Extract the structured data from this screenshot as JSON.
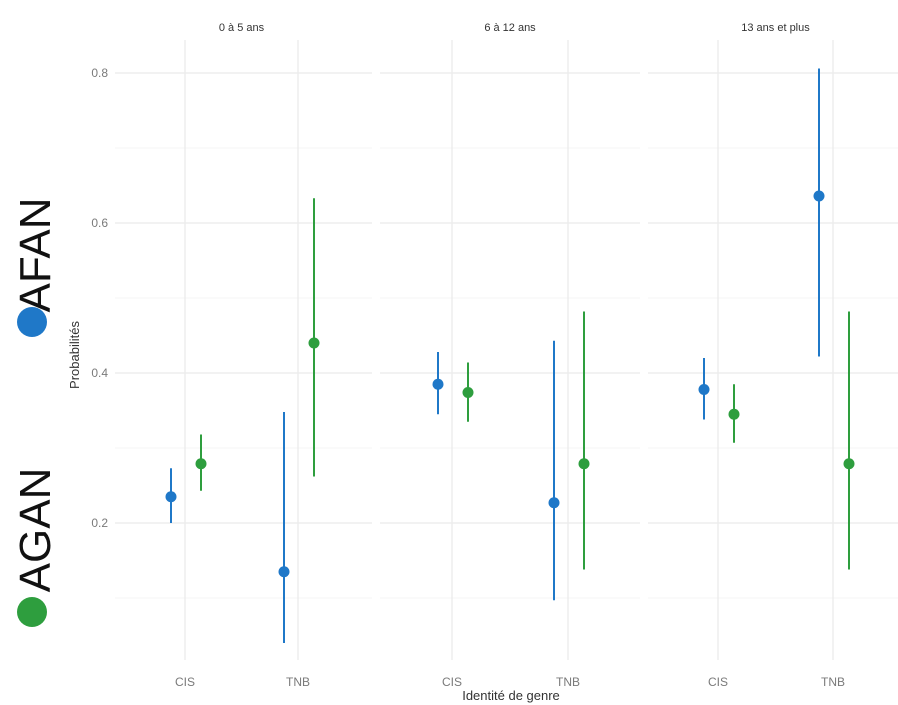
{
  "chart_data": {
    "type": "scatter",
    "subtype": "pointrange-faceted",
    "ylabel": "Probabilités",
    "xlabel": "Identité de genre",
    "categories": [
      "CIS",
      "TNB"
    ],
    "yticks": [
      "0.2",
      "0.4",
      "0.6",
      "0.8"
    ],
    "ylim": [
      0.05,
      0.83
    ],
    "grid": true,
    "facets": [
      "0 à 5 ans",
      "6 à 12 ans",
      "13 ans et plus"
    ],
    "legend_position": "left",
    "series": [
      {
        "name": "AFAN",
        "color": "#1f78c8",
        "points": [
          {
            "facet": "0 à 5 ans",
            "x": "CIS",
            "y": 0.235,
            "low": 0.2,
            "high": 0.273
          },
          {
            "facet": "0 à 5 ans",
            "x": "TNB",
            "y": 0.135,
            "low": 0.04,
            "high": 0.348
          },
          {
            "facet": "6 à 12 ans",
            "x": "CIS",
            "y": 0.385,
            "low": 0.345,
            "high": 0.428
          },
          {
            "facet": "6 à 12 ans",
            "x": "TNB",
            "y": 0.227,
            "low": 0.097,
            "high": 0.443
          },
          {
            "facet": "13 ans et plus",
            "x": "CIS",
            "y": 0.378,
            "low": 0.338,
            "high": 0.42
          },
          {
            "facet": "13 ans et plus",
            "x": "TNB",
            "y": 0.636,
            "low": 0.422,
            "high": 0.806
          }
        ]
      },
      {
        "name": "AGAN",
        "color": "#2e9e3e",
        "points": [
          {
            "facet": "0 à 5 ans",
            "x": "CIS",
            "y": 0.279,
            "low": 0.243,
            "high": 0.318
          },
          {
            "facet": "0 à 5 ans",
            "x": "TNB",
            "y": 0.44,
            "low": 0.262,
            "high": 0.633
          },
          {
            "facet": "6 à 12 ans",
            "x": "CIS",
            "y": 0.374,
            "low": 0.335,
            "high": 0.414
          },
          {
            "facet": "6 à 12 ans",
            "x": "TNB",
            "y": 0.279,
            "low": 0.138,
            "high": 0.482
          },
          {
            "facet": "13 ans et plus",
            "x": "CIS",
            "y": 0.345,
            "low": 0.307,
            "high": 0.385
          },
          {
            "facet": "13 ans et plus",
            "x": "TNB",
            "y": 0.279,
            "low": 0.138,
            "high": 0.482
          }
        ]
      }
    ]
  }
}
